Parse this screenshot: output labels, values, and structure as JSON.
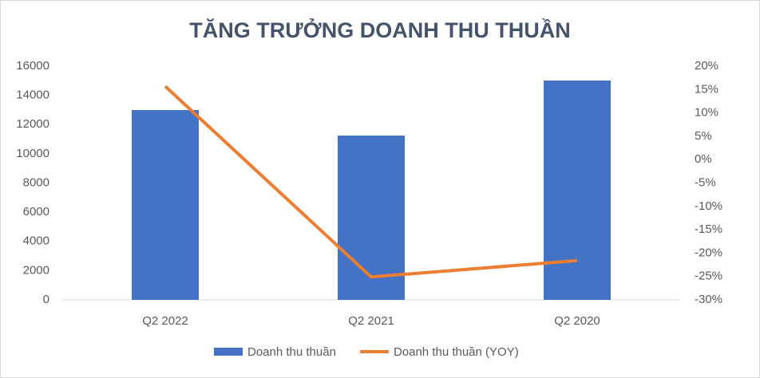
{
  "chart_data": {
    "type": "bar-line",
    "title": "TĂNG TRƯỞNG DOANH THU THUẦN",
    "categories": [
      "Q2 2022",
      "Q2 2021",
      "Q2 2020"
    ],
    "series": [
      {
        "name": "Doanh thu thuần",
        "type": "bar",
        "color": "#4472c4",
        "values": [
          13000,
          11250,
          15020
        ]
      },
      {
        "name": "Doanh thu thuần (YOY)",
        "type": "line",
        "color": "#ed7d31",
        "axis": "y2",
        "values": [
          15.7,
          -25.1,
          -21.6
        ]
      }
    ],
    "ylim": [
      0,
      16000
    ],
    "yticks": [
      0,
      2000,
      4000,
      6000,
      8000,
      10000,
      12000,
      14000,
      16000
    ],
    "y2lim": [
      -30,
      20
    ],
    "y2ticks": [
      {
        "value": -30,
        "label": "-30%"
      },
      {
        "value": -25,
        "label": "-25%"
      },
      {
        "value": -20,
        "label": "-20%"
      },
      {
        "value": -15,
        "label": "-15%"
      },
      {
        "value": -10,
        "label": "-10%"
      },
      {
        "value": -5,
        "label": "-5%"
      },
      {
        "value": 0,
        "label": "0%"
      },
      {
        "value": 5,
        "label": "5%"
      },
      {
        "value": 10,
        "label": "10%"
      },
      {
        "value": 15,
        "label": "15%"
      },
      {
        "value": 20,
        "label": "20%"
      }
    ],
    "legend": "bottom"
  }
}
